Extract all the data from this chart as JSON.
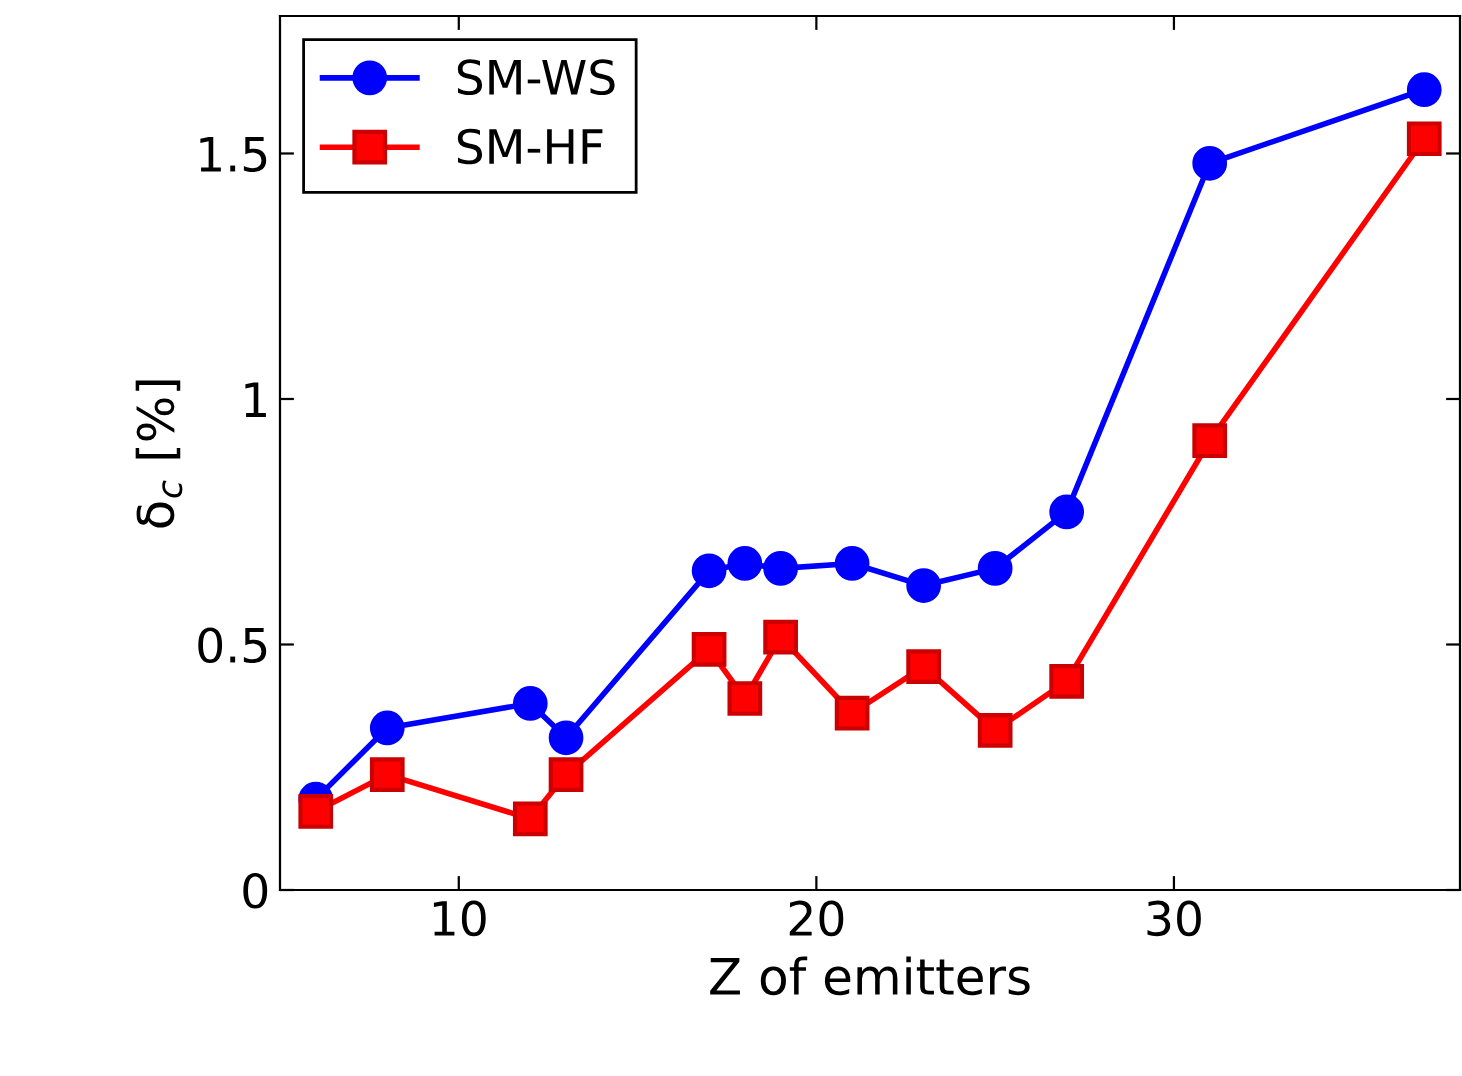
{
  "chart_data": {
    "type": "line",
    "xlabel": "Z of emitters",
    "ylabel": "δ$_{c}$ [%]",
    "x": [
      6,
      8,
      12,
      13,
      17,
      18,
      19,
      21,
      23,
      25,
      27,
      31,
      37
    ],
    "series": [
      {
        "name": "SM-WS",
        "color": "#0000ff",
        "marker": "circle",
        "values": [
          0.185,
          0.33,
          0.38,
          0.31,
          0.65,
          0.665,
          0.655,
          0.665,
          0.62,
          0.655,
          0.77,
          1.48,
          1.63
        ]
      },
      {
        "name": "SM-HF",
        "color": "#ff0000",
        "marker": "square",
        "values": [
          0.16,
          0.235,
          0.145,
          0.235,
          0.49,
          0.39,
          0.515,
          0.36,
          0.455,
          0.325,
          0.425,
          0.915,
          1.53
        ]
      }
    ],
    "xlim": [
      5,
      38
    ],
    "ylim": [
      0,
      1.78
    ],
    "xticks": [
      10,
      20,
      30
    ],
    "yticks": [
      0,
      {
        "value": 0.5,
        "label": "0.5"
      },
      1,
      {
        "value": 1.5,
        "label": "1.5"
      }
    ],
    "grid": false,
    "legend": "top left",
    "line_style": "solid"
  }
}
